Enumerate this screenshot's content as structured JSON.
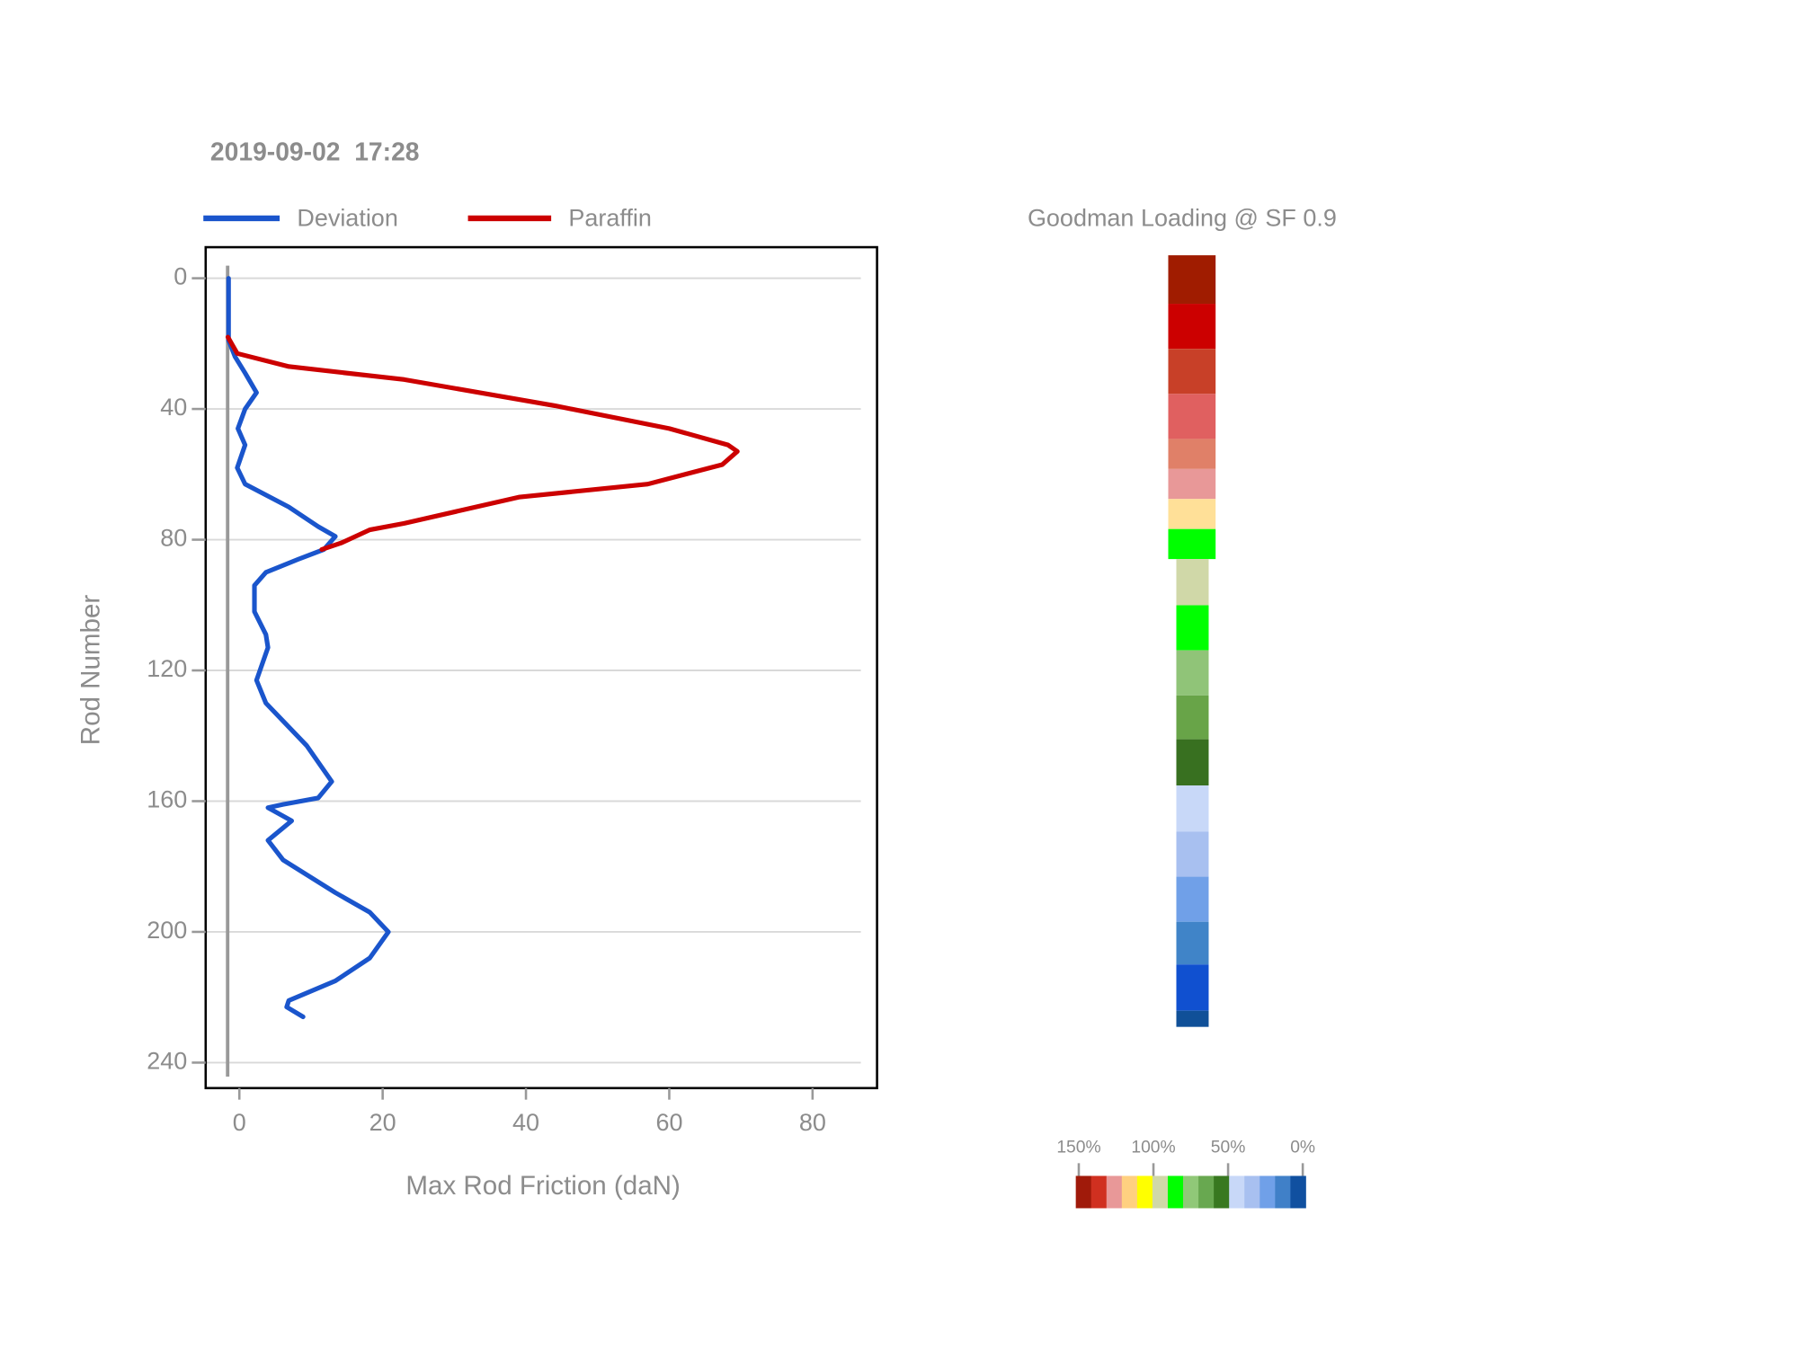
{
  "chart_data": [
    {
      "type": "line",
      "title": "2019-09-02  17:28",
      "xlabel": "Max Rod Friction (daN)",
      "ylabel": "Rod Number",
      "xlim": [
        -4.7,
        89
      ],
      "xticks": [
        0,
        20,
        40,
        60,
        80
      ],
      "ylim": [
        247.8,
        -9.5
      ],
      "yticks": [
        0,
        40,
        80,
        120,
        160,
        200,
        240
      ],
      "grid": true,
      "series": [
        {
          "name": "Deviation",
          "color": "#1a55cc",
          "rods": [
            0,
            19,
            24,
            29,
            35,
            40,
            46,
            51,
            58,
            63,
            70,
            76,
            79,
            83,
            86,
            90,
            94,
            102,
            109,
            113,
            123,
            130,
            143,
            154,
            159,
            161,
            162,
            166,
            172,
            178,
            188,
            194,
            200,
            208,
            215,
            221,
            223,
            226
          ],
          "values": [
            -1.5,
            -1.5,
            -0.6,
            0.8,
            2.4,
            0.8,
            -0.2,
            0.8,
            -0.3,
            0.8,
            6.9,
            11,
            13.4,
            11.8,
            8.2,
            3.7,
            2.1,
            2.1,
            3.7,
            4.0,
            2.4,
            3.7,
            9.4,
            12.9,
            11,
            6.1,
            4.0,
            7.3,
            4.0,
            6.1,
            13.4,
            18.2,
            20.8,
            18.2,
            13.4,
            6.9,
            6.6,
            8.9
          ]
        },
        {
          "name": "Paraffin",
          "color": "#cc0000",
          "rods": [
            18,
            23,
            27,
            31,
            39,
            46,
            51,
            53,
            57,
            63,
            67,
            75,
            77,
            81,
            83
          ],
          "values": [
            -1.6,
            -0.3,
            6.9,
            23,
            44,
            60,
            68.2,
            69.5,
            67.4,
            57,
            39,
            23,
            18.2,
            14.2,
            11.5
          ]
        }
      ]
    },
    {
      "type": "colorbar",
      "title": "Goodman Loading @ SF 0.9",
      "segments": [
        "#a01c00",
        "#cc0000",
        "#c84028",
        "#e06060",
        "#e08068",
        "#e89898",
        "#ffe098",
        "#00ff00",
        "#d0d8a8",
        "#00ff00",
        "#90c478",
        "#68a448",
        "#387020",
        "#c8d8f8",
        "#a8c0f0",
        "#70a0e8",
        "#4084c8",
        "#1050d0",
        "#105098"
      ],
      "scale_colors": [
        "#a01a0a",
        "#d03020",
        "#e89898",
        "#ffd080",
        "#ffff00",
        "#d0d8a8",
        "#00ff00",
        "#90c878",
        "#68a850",
        "#387820",
        "#c8d8f8",
        "#a8c0f0",
        "#70a0e8",
        "#4080c8",
        "#1050a0"
      ],
      "xlim": [
        152,
        -2
      ],
      "xticks": [
        {
          "value": 150,
          "label": "150%"
        },
        {
          "value": 100,
          "label": "100%"
        },
        {
          "value": 50,
          "label": "50%"
        },
        {
          "value": 0,
          "label": "0%"
        }
      ]
    }
  ]
}
